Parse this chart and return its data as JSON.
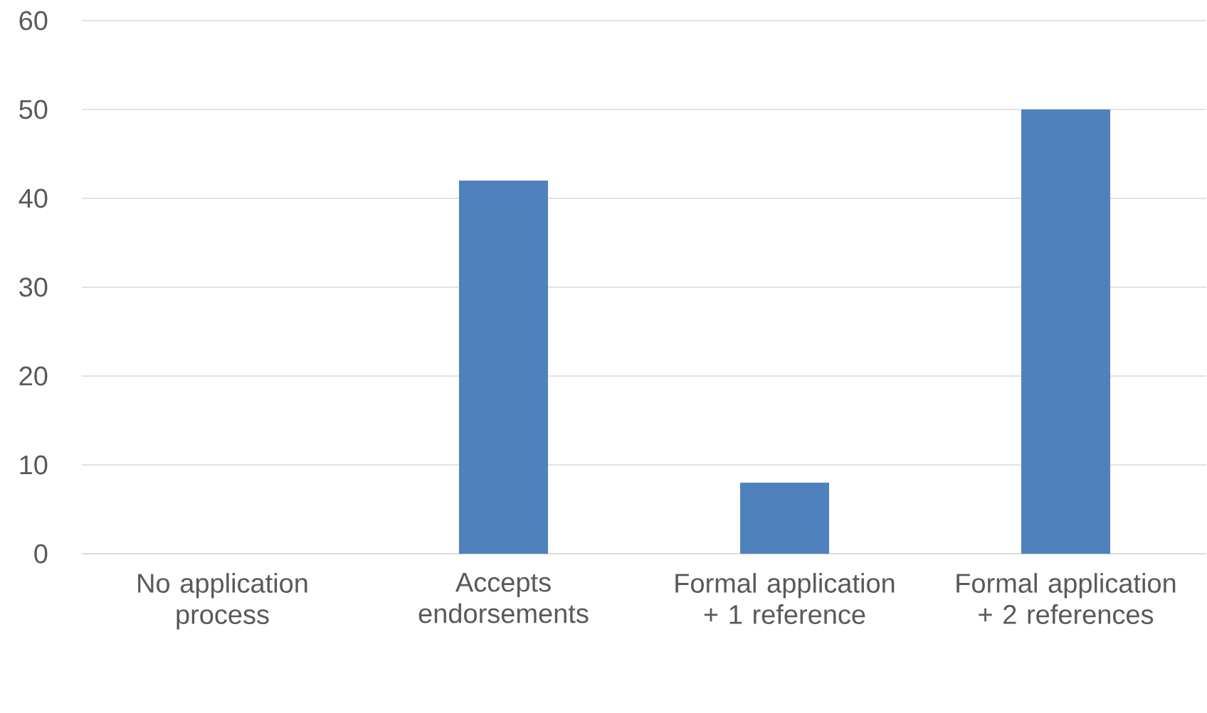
{
  "chart_data": {
    "type": "bar",
    "categories": [
      "No application process",
      "Accepts endorsements",
      "Formal application + 1 reference",
      "Formal application + 2 references"
    ],
    "values": [
      0,
      42,
      8,
      50
    ],
    "color": "#4f81bd",
    "ylim": [
      0,
      60
    ],
    "yticks": [
      0,
      10,
      20,
      30,
      40,
      50,
      60
    ],
    "grid": "y"
  }
}
